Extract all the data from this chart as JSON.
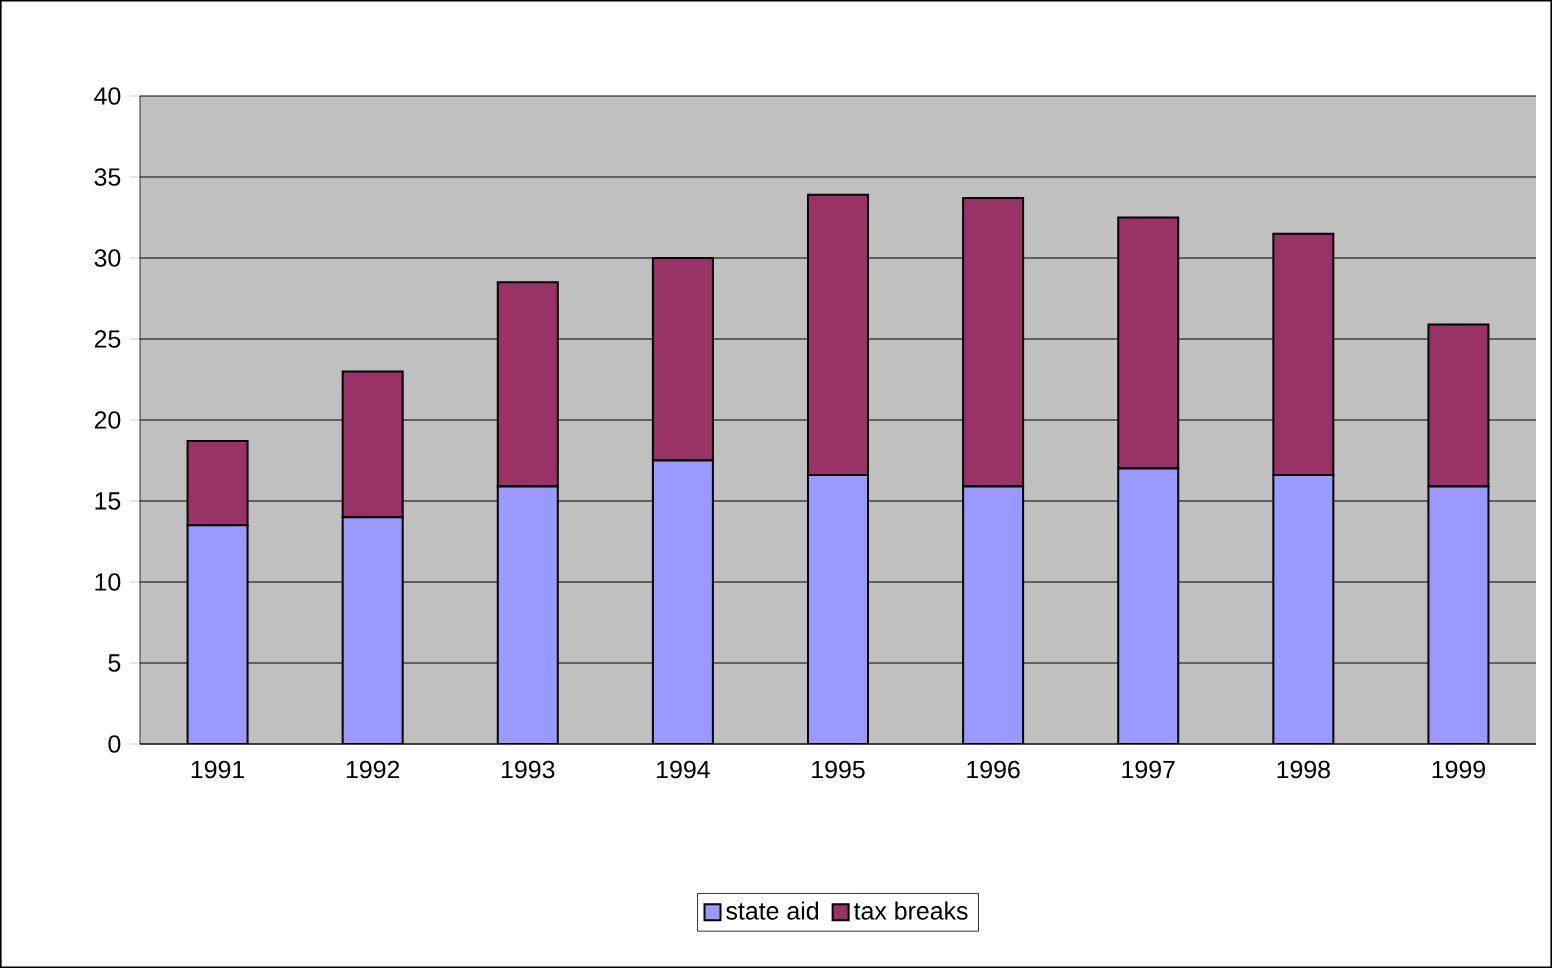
{
  "chart_data": {
    "type": "bar",
    "stacked": true,
    "categories": [
      "1991",
      "1992",
      "1993",
      "1994",
      "1995",
      "1996",
      "1997",
      "1998",
      "1999"
    ],
    "series": [
      {
        "name": "state aid",
        "color": "#9999ff",
        "values": [
          13.5,
          14.0,
          15.9,
          17.5,
          16.6,
          15.9,
          17.0,
          16.6,
          15.9
        ]
      },
      {
        "name": "tax breaks",
        "color": "#993366",
        "values": [
          5.2,
          9.0,
          12.6,
          12.5,
          17.3,
          17.8,
          15.5,
          14.9,
          10.0
        ]
      }
    ],
    "ylim": [
      0,
      40
    ],
    "yticks": [
      0,
      5,
      10,
      15,
      20,
      25,
      30,
      35,
      40
    ],
    "grid": "y",
    "legend": "bottom"
  }
}
